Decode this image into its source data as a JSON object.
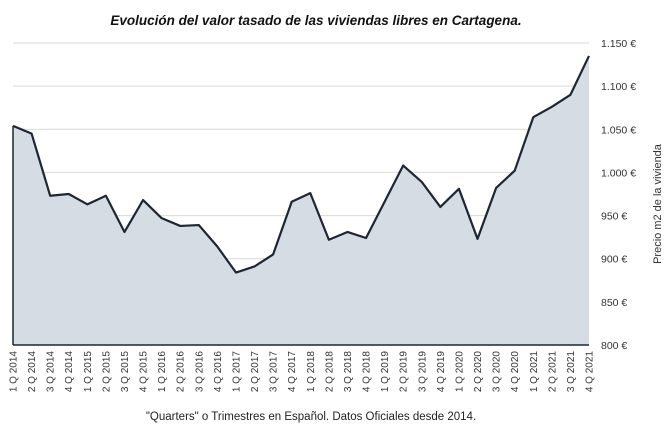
{
  "chart_data": {
    "type": "area",
    "title": "Evolución del valor tasado de las viviendas libres en Cartagena.",
    "caption": "\"Quarters\" o Trimestres en Español. Datos Oficiales desde 2014.",
    "ylabel": "Precio m2 de la vivienda",
    "xlabel": "",
    "ylim": [
      800,
      1150
    ],
    "yticks": [
      "800 €",
      "850 €",
      "900 €",
      "950 €",
      "1.000 €",
      "1.050 €",
      "1.100 €",
      "1.150 €"
    ],
    "grid": true,
    "y_axis_position": "right",
    "line_color": "#1f2633",
    "fill_color": "#d6dce4",
    "categories": [
      "1 Q 2014",
      "2 Q 2014",
      "3 Q 2014",
      "4 Q 2014",
      "1 Q 2015",
      "2 Q 2015",
      "3 Q 2015",
      "4 Q 2015",
      "1 Q 2016",
      "2 Q 2016",
      "3 Q 2016",
      "4 Q 2016",
      "1 Q 2017",
      "2 Q 2017",
      "3 Q 2017",
      "4 Q 2017",
      "1 Q 2018",
      "2 Q 2018",
      "3 Q 2018",
      "4 Q 2018",
      "1 Q 2019",
      "2 Q 2019",
      "3 Q 2019",
      "4 Q 2019",
      "1 Q 2020",
      "2 Q 2020",
      "3 Q 2020",
      "4 Q 2020",
      "1 Q 2021",
      "2 Q 2021",
      "3 Q 2021",
      "4 Q 2021"
    ],
    "values": [
      1054,
      1045,
      973,
      975,
      963,
      973,
      931,
      968,
      947,
      938,
      939,
      914,
      884,
      891,
      905,
      966,
      976,
      922,
      931,
      924,
      966,
      1008,
      989,
      960,
      981,
      923,
      982,
      1002,
      1064,
      1076,
      1090,
      1135
    ]
  }
}
